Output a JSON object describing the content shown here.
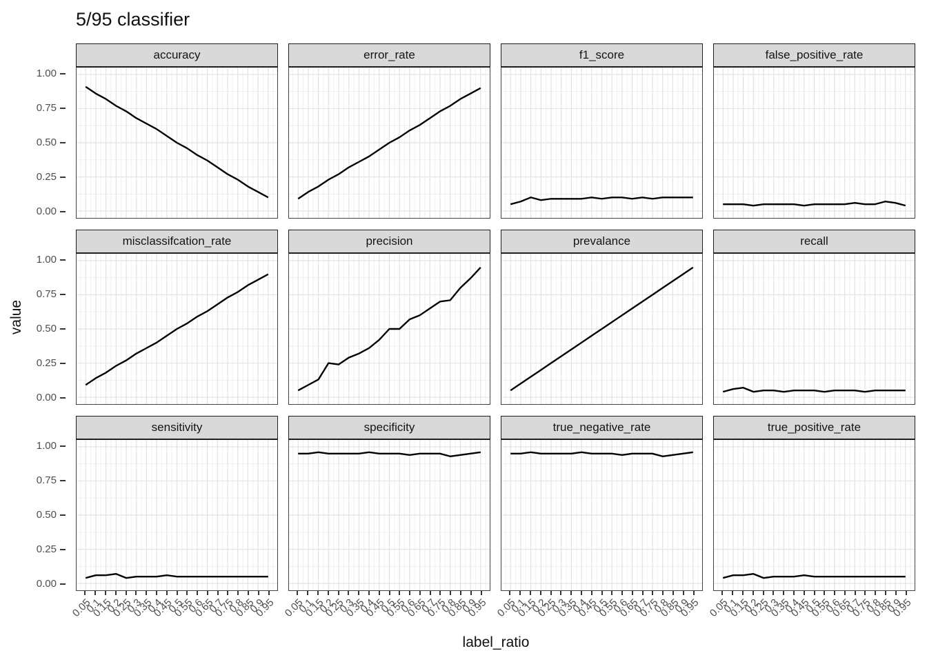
{
  "page": {
    "background": "#ffffff"
  },
  "colors": {
    "line": "#000000",
    "strip_fill": "#d9d9d9",
    "strip_border": "#1c1c1c",
    "panel_border": "#414141",
    "grid_major": "#e2e2e2",
    "grid_minor": "#efefef",
    "axis_text": "#4d4d4d",
    "tick_mark": "#333333",
    "title_text": "#111111"
  },
  "chart_data": {
    "type": "line",
    "title": "5/95 classifier",
    "xlabel": "label_ratio",
    "ylabel": "value",
    "legend": "none",
    "grid": "major+minor",
    "xlim": [
      0.05,
      0.95
    ],
    "ylim": [
      0,
      1
    ],
    "x": [
      0.05,
      0.1,
      0.15,
      0.2,
      0.25,
      0.3,
      0.35,
      0.4,
      0.45,
      0.5,
      0.55,
      0.6,
      0.65,
      0.7,
      0.75,
      0.8,
      0.85,
      0.9,
      0.95
    ],
    "x_tick_labels": [
      "0.05",
      "0.1",
      "0.15",
      "0.2",
      "0.25",
      "0.3",
      "0.35",
      "0.4",
      "0.45",
      "0.5",
      "0.55",
      "0.6",
      "0.65",
      "0.7",
      "0.75",
      "0.8",
      "0.85",
      "0.9",
      "0.95"
    ],
    "y_ticks": {
      "values": [
        1.0,
        0.75,
        0.5,
        0.25,
        0.0
      ],
      "labels": [
        "1.00",
        "0.75",
        "0.50",
        "0.25",
        "0.00"
      ]
    },
    "facet_layout": {
      "rows": 3,
      "cols": 4
    },
    "facets": [
      {
        "label": "accuracy",
        "values": [
          0.91,
          0.86,
          0.82,
          0.77,
          0.73,
          0.68,
          0.64,
          0.6,
          0.55,
          0.5,
          0.46,
          0.41,
          0.37,
          0.32,
          0.27,
          0.23,
          0.18,
          0.14,
          0.1
        ]
      },
      {
        "label": "error_rate",
        "values": [
          0.09,
          0.14,
          0.18,
          0.23,
          0.27,
          0.32,
          0.36,
          0.4,
          0.45,
          0.5,
          0.54,
          0.59,
          0.63,
          0.68,
          0.73,
          0.77,
          0.82,
          0.86,
          0.9
        ]
      },
      {
        "label": "f1_score",
        "values": [
          0.05,
          0.07,
          0.1,
          0.08,
          0.09,
          0.09,
          0.09,
          0.09,
          0.1,
          0.09,
          0.1,
          0.1,
          0.09,
          0.1,
          0.09,
          0.1,
          0.1,
          0.1,
          0.1
        ]
      },
      {
        "label": "false_positive_rate",
        "values": [
          0.05,
          0.05,
          0.05,
          0.04,
          0.05,
          0.05,
          0.05,
          0.05,
          0.04,
          0.05,
          0.05,
          0.05,
          0.05,
          0.06,
          0.05,
          0.05,
          0.07,
          0.06,
          0.04
        ]
      },
      {
        "label": "misclassifcation_rate",
        "values": [
          0.09,
          0.14,
          0.18,
          0.23,
          0.27,
          0.32,
          0.36,
          0.4,
          0.45,
          0.5,
          0.54,
          0.59,
          0.63,
          0.68,
          0.73,
          0.77,
          0.82,
          0.86,
          0.9
        ]
      },
      {
        "label": "precision",
        "values": [
          0.05,
          0.09,
          0.13,
          0.25,
          0.24,
          0.29,
          0.32,
          0.36,
          0.42,
          0.5,
          0.5,
          0.57,
          0.6,
          0.65,
          0.7,
          0.71,
          0.8,
          0.87,
          0.95
        ]
      },
      {
        "label": "prevalance",
        "values": [
          0.05,
          0.1,
          0.15,
          0.2,
          0.25,
          0.3,
          0.35,
          0.4,
          0.45,
          0.5,
          0.55,
          0.6,
          0.65,
          0.7,
          0.75,
          0.8,
          0.85,
          0.9,
          0.95
        ]
      },
      {
        "label": "recall",
        "values": [
          0.04,
          0.06,
          0.07,
          0.04,
          0.05,
          0.05,
          0.04,
          0.05,
          0.05,
          0.05,
          0.04,
          0.05,
          0.05,
          0.05,
          0.04,
          0.05,
          0.05,
          0.05,
          0.05
        ]
      },
      {
        "label": "sensitivity",
        "values": [
          0.04,
          0.06,
          0.06,
          0.07,
          0.04,
          0.05,
          0.05,
          0.05,
          0.06,
          0.05,
          0.05,
          0.05,
          0.05,
          0.05,
          0.05,
          0.05,
          0.05,
          0.05,
          0.05
        ]
      },
      {
        "label": "specificity",
        "values": [
          0.95,
          0.95,
          0.96,
          0.95,
          0.95,
          0.95,
          0.95,
          0.96,
          0.95,
          0.95,
          0.95,
          0.94,
          0.95,
          0.95,
          0.95,
          0.93,
          0.94,
          0.95,
          0.96
        ]
      },
      {
        "label": "true_negative_rate",
        "values": [
          0.95,
          0.95,
          0.96,
          0.95,
          0.95,
          0.95,
          0.95,
          0.96,
          0.95,
          0.95,
          0.95,
          0.94,
          0.95,
          0.95,
          0.95,
          0.93,
          0.94,
          0.95,
          0.96
        ]
      },
      {
        "label": "true_positive_rate",
        "values": [
          0.04,
          0.06,
          0.06,
          0.07,
          0.04,
          0.05,
          0.05,
          0.05,
          0.06,
          0.05,
          0.05,
          0.05,
          0.05,
          0.05,
          0.05,
          0.05,
          0.05,
          0.05,
          0.05
        ]
      }
    ]
  }
}
